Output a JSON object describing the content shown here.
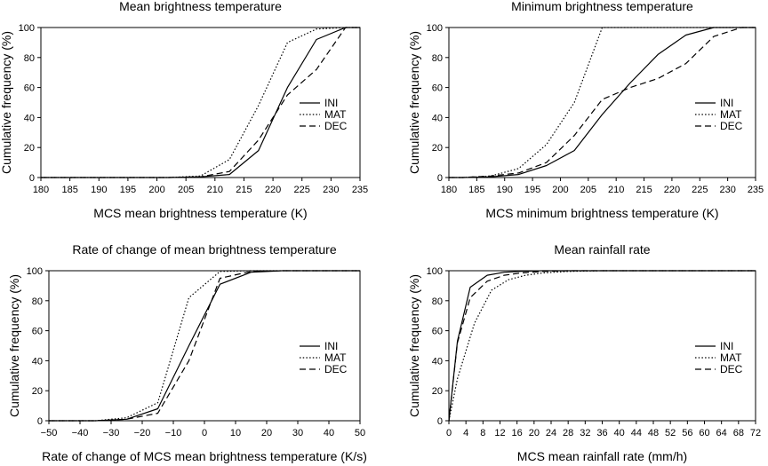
{
  "chart_data": [
    {
      "type": "line",
      "title": "Mean brightness temperature",
      "xlabel": "MCS mean brightness temperature (K)",
      "ylabel": "Cumulative frequency (%)",
      "xlim": [
        180,
        235
      ],
      "ylim": [
        0,
        100
      ],
      "xticks": [
        "180",
        "185",
        "190",
        "195",
        "200",
        "205",
        "210",
        "215",
        "220",
        "225",
        "230",
        "235"
      ],
      "yticks": [
        "0",
        "20",
        "40",
        "60",
        "80",
        "100"
      ],
      "legend_position": "center-right",
      "series": [
        {
          "name": "INI",
          "style": "solid",
          "x": [
            180,
            202,
            207.5,
            212.5,
            217.5,
            222.5,
            227.5,
            232.5,
            235
          ],
          "y": [
            0,
            0,
            0.5,
            2,
            18,
            60,
            92,
            100,
            100
          ]
        },
        {
          "name": "MAT",
          "style": "dotted",
          "x": [
            180,
            202,
            207.5,
            212.5,
            217.5,
            222.5,
            227.5,
            232.5,
            235
          ],
          "y": [
            0,
            0,
            1,
            12,
            48,
            90,
            99,
            100,
            100
          ]
        },
        {
          "name": "DEC",
          "style": "dashed",
          "x": [
            180,
            202,
            207.5,
            212.5,
            217.5,
            222.5,
            227.5,
            232.5,
            235
          ],
          "y": [
            0,
            0,
            0.5,
            4,
            25,
            55,
            72,
            100,
            100
          ]
        }
      ]
    },
    {
      "type": "line",
      "title": "Minimum brightness temperature",
      "xlabel": "MCS minimum brightness temperature (K)",
      "ylabel": "Cumulative frequency (%)",
      "xlim": [
        180,
        235
      ],
      "ylim": [
        0,
        100
      ],
      "xticks": [
        "180",
        "185",
        "190",
        "195",
        "200",
        "205",
        "210",
        "215",
        "220",
        "225",
        "230",
        "235"
      ],
      "yticks": [
        "0",
        "20",
        "40",
        "60",
        "80",
        "100"
      ],
      "legend_position": "center-right",
      "series": [
        {
          "name": "INI",
          "style": "solid",
          "x": [
            180,
            182.5,
            187.5,
            192.5,
            197.5,
            202.5,
            207.5,
            212.5,
            217.5,
            222.5,
            227.5,
            232.5,
            235
          ],
          "y": [
            0,
            0,
            0.5,
            2,
            8,
            18,
            42,
            63,
            82,
            95,
            100,
            100,
            100
          ]
        },
        {
          "name": "MAT",
          "style": "dotted",
          "x": [
            180,
            182.5,
            187.5,
            192.5,
            197.5,
            202.5,
            207.5,
            212.5,
            235
          ],
          "y": [
            0,
            0,
            1,
            6,
            22,
            50,
            100,
            100,
            100
          ]
        },
        {
          "name": "DEC",
          "style": "dashed",
          "x": [
            180,
            182.5,
            187.5,
            192.5,
            197.5,
            202.5,
            207.5,
            212.5,
            217.5,
            222.5,
            227.5,
            232.5,
            235
          ],
          "y": [
            0,
            0,
            1,
            3,
            10,
            28,
            52,
            60,
            66,
            76,
            94,
            100,
            100
          ]
        }
      ]
    },
    {
      "type": "line",
      "title": "Rate of change of mean brightness temperature",
      "xlabel": "Rate of change of MCS mean brightness temperature (K/s)",
      "ylabel": "Cumulative frequency (%)",
      "xlim": [
        -50,
        50
      ],
      "ylim": [
        0,
        100
      ],
      "xticks": [
        "−50",
        "−40",
        "−30",
        "−20",
        "−10",
        "0",
        "10",
        "20",
        "30",
        "40",
        "50"
      ],
      "yticks": [
        "0",
        "20",
        "40",
        "60",
        "80",
        "100"
      ],
      "legend_position": "center-right",
      "series": [
        {
          "name": "INI",
          "style": "solid",
          "x": [
            -50,
            -35,
            -25,
            -15,
            -5,
            5,
            15,
            25,
            50
          ],
          "y": [
            0,
            0,
            1,
            8,
            50,
            91,
            99,
            100,
            100
          ]
        },
        {
          "name": "MAT",
          "style": "dotted",
          "x": [
            -50,
            -35,
            -25,
            -15,
            -5,
            5,
            15,
            25,
            50
          ],
          "y": [
            0,
            0,
            2,
            12,
            82,
            99.5,
            100,
            100,
            100
          ]
        },
        {
          "name": "DEC",
          "style": "dashed",
          "x": [
            -50,
            -35,
            -25,
            -15,
            -5,
            5,
            15,
            25,
            50
          ],
          "y": [
            0,
            0,
            1,
            5,
            40,
            95,
            99.5,
            100,
            100
          ]
        }
      ]
    },
    {
      "type": "line",
      "title": "Mean rainfall rate",
      "xlabel": "MCS mean rainfall rate (mm/h)",
      "ylabel": "Cumulative frequency (%)",
      "xlim": [
        0,
        72
      ],
      "ylim": [
        0,
        100
      ],
      "xticks": [
        "0",
        "4",
        "8",
        "12",
        "16",
        "20",
        "24",
        "28",
        "32",
        "36",
        "40",
        "44",
        "48",
        "52",
        "56",
        "60",
        "64",
        "68",
        "72"
      ],
      "yticks": [
        "0",
        "20",
        "40",
        "60",
        "80",
        "100"
      ],
      "legend_position": "center-right",
      "series": [
        {
          "name": "INI",
          "style": "solid",
          "x": [
            0,
            2,
            5,
            9,
            13,
            17,
            22,
            28,
            36,
            72
          ],
          "y": [
            0,
            53,
            89,
            97,
            99,
            99.6,
            100,
            100,
            100,
            100
          ]
        },
        {
          "name": "MAT",
          "style": "dotted",
          "x": [
            0,
            2,
            6,
            10,
            14,
            18,
            22,
            28,
            36,
            72
          ],
          "y": [
            0,
            28,
            65,
            87,
            94,
            97,
            98.5,
            99.5,
            100,
            100
          ]
        },
        {
          "name": "DEC",
          "style": "dashed",
          "x": [
            0,
            2,
            5,
            9,
            13,
            17,
            22,
            28,
            36,
            72
          ],
          "y": [
            0,
            52,
            82,
            93,
            97,
            98.5,
            99.5,
            100,
            100,
            100
          ]
        }
      ]
    }
  ]
}
